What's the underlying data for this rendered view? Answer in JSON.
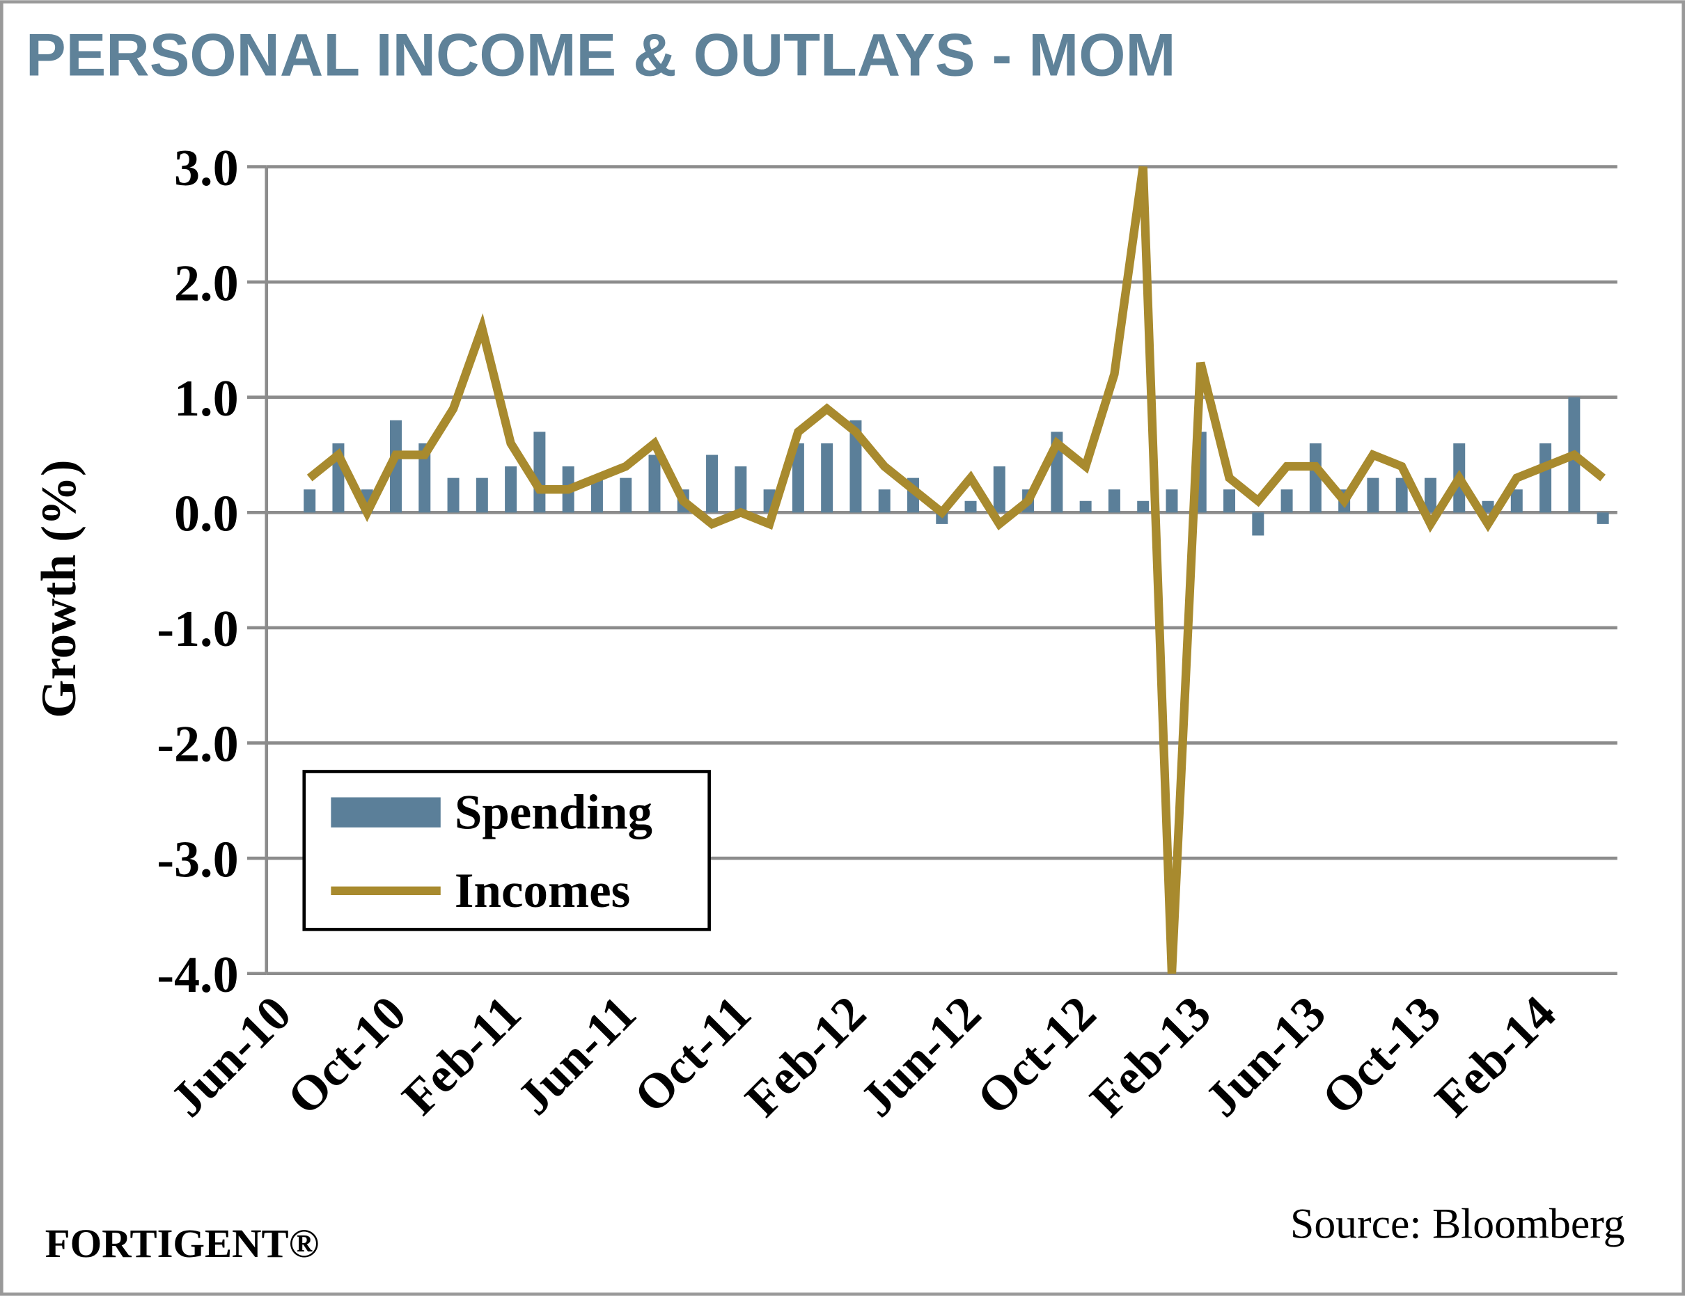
{
  "chart_data": {
    "type": "bar+line",
    "title": "PERSONAL INCOME & OUTLAYS - MOM",
    "y_label": "Growth (%)",
    "source": "Source: Bloomberg",
    "brand": "FORTIGENT®",
    "categories": [
      "Jun-10",
      null,
      null,
      null,
      "Oct-10",
      null,
      null,
      null,
      "Feb-11",
      null,
      null,
      null,
      "Jun-11",
      null,
      null,
      null,
      "Oct-11",
      null,
      null,
      null,
      "Feb-12",
      null,
      null,
      null,
      "Jun-12",
      null,
      null,
      null,
      "Oct-12",
      null,
      null,
      null,
      "Feb-13",
      null,
      null,
      null,
      "Jun-13",
      null,
      null,
      null,
      "Oct-13",
      null,
      null,
      null,
      "Feb-14",
      null,
      null
    ],
    "series": [
      {
        "name": "Spending",
        "type": "bar",
        "color": "#5b7f99",
        "values": [
          null,
          0.2,
          0.6,
          0.2,
          0.8,
          0.6,
          0.3,
          0.3,
          0.4,
          0.7,
          0.4,
          0.3,
          0.3,
          0.5,
          0.2,
          0.5,
          0.4,
          0.2,
          0.6,
          0.6,
          0.8,
          0.2,
          0.3,
          -0.1,
          0.1,
          0.4,
          0.2,
          0.7,
          0.1,
          0.2,
          0.1,
          0.2,
          0.7,
          0.2,
          -0.2,
          0.2,
          0.6,
          0.2,
          0.3,
          0.3,
          0.3,
          0.6,
          0.1,
          0.2,
          0.6,
          1.0,
          -0.1
        ]
      },
      {
        "name": "Incomes",
        "type": "line",
        "color": "#a88a2e",
        "values": [
          null,
          0.3,
          0.5,
          0.0,
          0.5,
          0.5,
          0.9,
          1.6,
          0.6,
          0.2,
          0.2,
          0.3,
          0.4,
          0.6,
          0.1,
          -0.1,
          0.0,
          -0.1,
          0.7,
          0.9,
          0.7,
          0.4,
          0.2,
          0.0,
          0.3,
          -0.1,
          0.1,
          0.6,
          0.4,
          1.2,
          3.0,
          -4.0,
          1.3,
          0.3,
          0.1,
          0.4,
          0.4,
          0.1,
          0.5,
          0.4,
          -0.1,
          0.3,
          -0.1,
          0.3,
          0.4,
          0.5,
          0.3
        ]
      }
    ],
    "ylim": [
      -4,
      3
    ],
    "yticks": [
      {
        "value": 3,
        "label": "3.0"
      },
      {
        "value": 2,
        "label": "2.0"
      },
      {
        "value": 1,
        "label": "1.0"
      },
      {
        "value": 0,
        "label": "0.0"
      },
      {
        "value": -1,
        "label": "-1.0"
      },
      {
        "value": -2,
        "label": "-2.0"
      },
      {
        "value": -3,
        "label": "-3.0"
      },
      {
        "value": -4,
        "label": "-4.0"
      }
    ],
    "grid": true,
    "legend": "lower left"
  }
}
